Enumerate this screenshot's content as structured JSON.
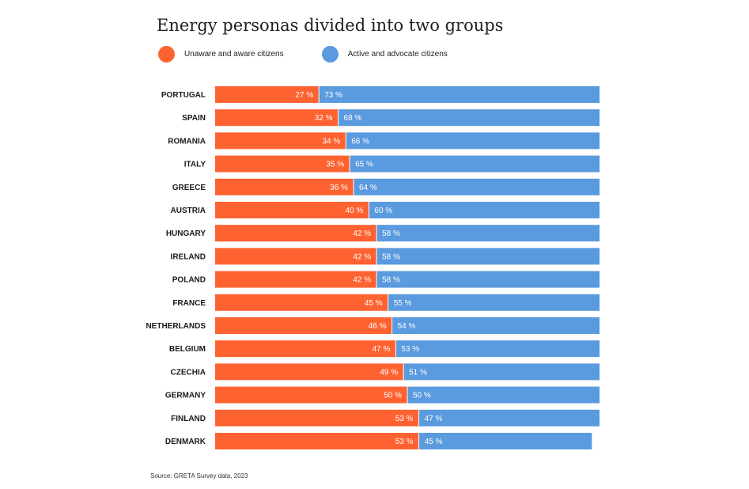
{
  "colors": {
    "group_a": "#ff6231",
    "group_b": "#5a9ade"
  },
  "chart_data": {
    "type": "bar",
    "orientation": "horizontal",
    "stacked": true,
    "title": "Energy personas divided into two groups",
    "legend_placement": "top-left",
    "value_suffix": " %",
    "xlim": [
      0,
      100
    ],
    "categories": [
      "PORTUGAL",
      "SPAIN",
      "ROMANIA",
      "ITALY",
      "GREECE",
      "AUSTRIA",
      "HUNGARY",
      "IRELAND",
      "POLAND",
      "FRANCE",
      "NETHERLANDS",
      "BELGIUM",
      "CZECHIA",
      "GERMANY",
      "FINLAND",
      "DENMARK"
    ],
    "series": [
      {
        "name": "Unaware and aware citizens",
        "color": "#ff6231",
        "values": [
          27,
          32,
          34,
          35,
          36,
          40,
          42,
          42,
          42,
          45,
          46,
          47,
          49,
          50,
          53,
          53
        ]
      },
      {
        "name": "Active and advocate citizens",
        "color": "#5a9ade",
        "values": [
          73,
          68,
          66,
          65,
          64,
          60,
          58,
          58,
          58,
          55,
          54,
          53,
          51,
          50,
          47,
          45
        ]
      }
    ],
    "source": "Source: GRETA Survey data, 2023"
  }
}
